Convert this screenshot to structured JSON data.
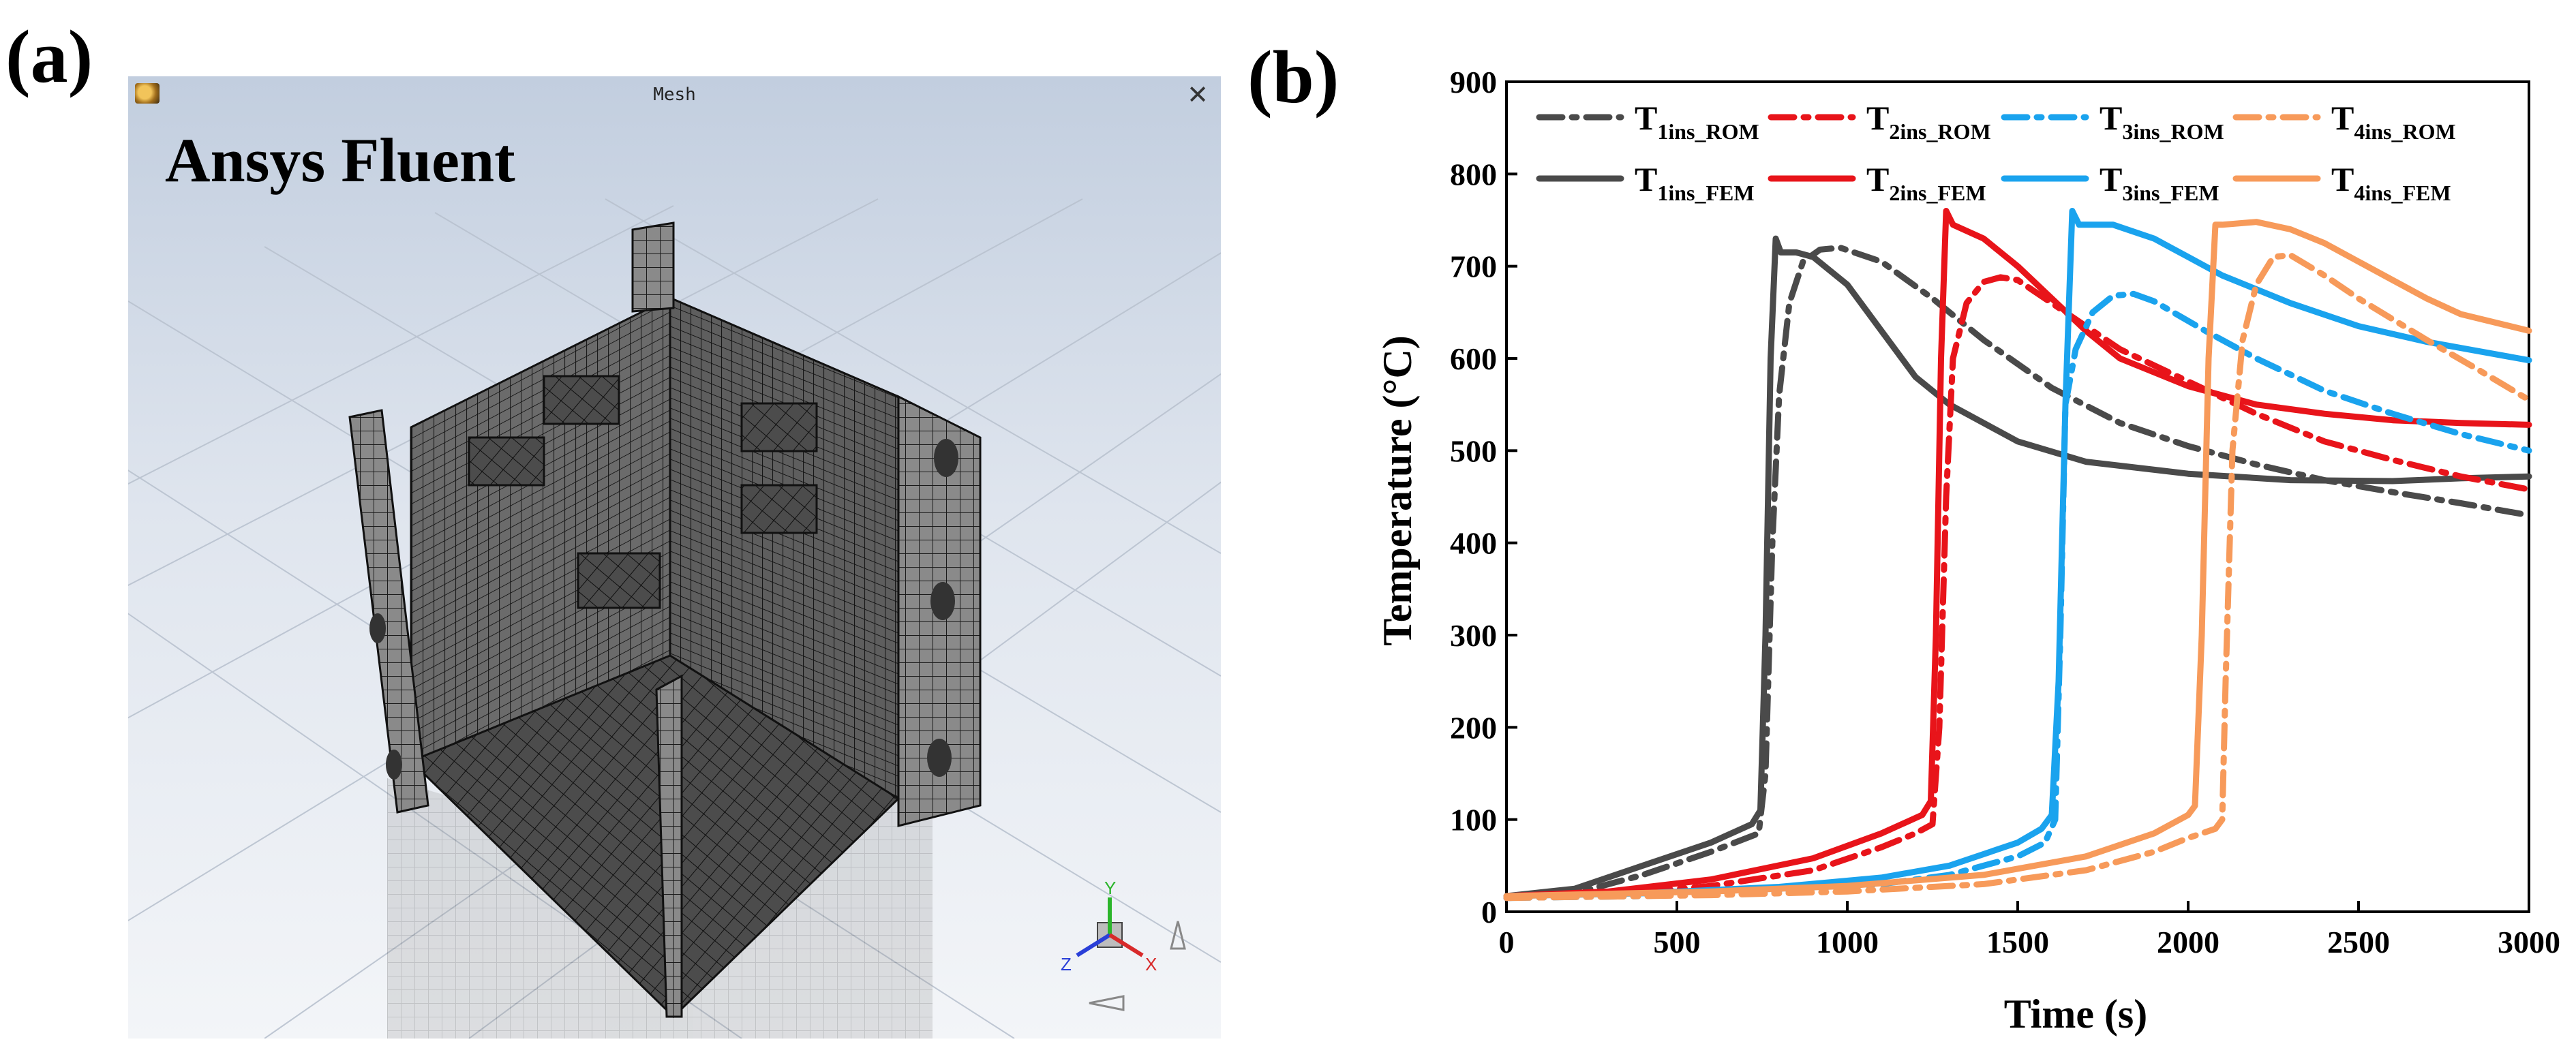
{
  "panels": {
    "a_label": "(a)",
    "b_label": "(b)"
  },
  "fluent": {
    "window_title": "Mesh",
    "brand": "Ansys Fluent",
    "close_glyph": "✕",
    "app_icon": "fluent-app-icon",
    "axis_triad": {
      "x": "X",
      "y": "Y",
      "z": "Z"
    }
  },
  "chart_data": {
    "type": "line",
    "xlabel": "Time (s)",
    "ylabel": "Temperature (°C)",
    "xlim": [
      0,
      3000
    ],
    "ylim": [
      0,
      900
    ],
    "xticks": [
      0,
      500,
      1000,
      1500,
      2000,
      2500,
      3000
    ],
    "yticks": [
      0,
      100,
      200,
      300,
      400,
      500,
      600,
      700,
      800,
      900
    ],
    "legend": {
      "placement": "top",
      "columns": 4
    },
    "series": [
      {
        "name": "T1ins_ROM",
        "base": "T",
        "sub": "1ins_ROM",
        "color": "#4a4a4a",
        "style": "dashdot",
        "points": [
          [
            0,
            15
          ],
          [
            200,
            20
          ],
          [
            400,
            40
          ],
          [
            600,
            65
          ],
          [
            740,
            85
          ],
          [
            760,
            150
          ],
          [
            780,
            400
          ],
          [
            800,
            560
          ],
          [
            830,
            660
          ],
          [
            870,
            705
          ],
          [
            920,
            718
          ],
          [
            980,
            720
          ],
          [
            1100,
            705
          ],
          [
            1250,
            665
          ],
          [
            1400,
            620
          ],
          [
            1600,
            568
          ],
          [
            1800,
            530
          ],
          [
            2000,
            505
          ],
          [
            2200,
            485
          ],
          [
            2400,
            468
          ],
          [
            2600,
            455
          ],
          [
            2800,
            443
          ],
          [
            3000,
            430
          ]
        ]
      },
      {
        "name": "T1ins_FEM",
        "base": "T",
        "sub": "1ins_FEM",
        "color": "#4a4a4a",
        "style": "solid",
        "points": [
          [
            0,
            17
          ],
          [
            200,
            25
          ],
          [
            400,
            50
          ],
          [
            600,
            75
          ],
          [
            720,
            95
          ],
          [
            745,
            110
          ],
          [
            760,
            300
          ],
          [
            775,
            600
          ],
          [
            790,
            730
          ],
          [
            805,
            715
          ],
          [
            850,
            715
          ],
          [
            900,
            710
          ],
          [
            1000,
            680
          ],
          [
            1100,
            630
          ],
          [
            1200,
            580
          ],
          [
            1300,
            550
          ],
          [
            1500,
            510
          ],
          [
            1700,
            488
          ],
          [
            2000,
            475
          ],
          [
            2300,
            468
          ],
          [
            2600,
            467
          ],
          [
            2800,
            470
          ],
          [
            3000,
            472
          ]
        ]
      },
      {
        "name": "T2ins_ROM",
        "base": "T",
        "sub": "2ins_ROM",
        "color": "#e8141a",
        "style": "dashdot",
        "points": [
          [
            0,
            15
          ],
          [
            300,
            18
          ],
          [
            600,
            28
          ],
          [
            900,
            45
          ],
          [
            1100,
            70
          ],
          [
            1200,
            85
          ],
          [
            1250,
            95
          ],
          [
            1270,
            200
          ],
          [
            1290,
            450
          ],
          [
            1310,
            600
          ],
          [
            1350,
            660
          ],
          [
            1400,
            683
          ],
          [
            1450,
            688
          ],
          [
            1500,
            685
          ],
          [
            1600,
            660
          ],
          [
            1800,
            610
          ],
          [
            2000,
            575
          ],
          [
            2200,
            540
          ],
          [
            2400,
            510
          ],
          [
            2600,
            490
          ],
          [
            2800,
            472
          ],
          [
            3000,
            458
          ]
        ]
      },
      {
        "name": "T2ins_FEM",
        "base": "T",
        "sub": "2ins_FEM",
        "color": "#e8141a",
        "style": "solid",
        "points": [
          [
            0,
            17
          ],
          [
            300,
            22
          ],
          [
            600,
            35
          ],
          [
            900,
            58
          ],
          [
            1100,
            85
          ],
          [
            1220,
            105
          ],
          [
            1245,
            120
          ],
          [
            1260,
            300
          ],
          [
            1275,
            600
          ],
          [
            1290,
            760
          ],
          [
            1310,
            745
          ],
          [
            1400,
            730
          ],
          [
            1500,
            700
          ],
          [
            1600,
            665
          ],
          [
            1700,
            630
          ],
          [
            1800,
            600
          ],
          [
            2000,
            570
          ],
          [
            2200,
            550
          ],
          [
            2400,
            540
          ],
          [
            2600,
            533
          ],
          [
            2800,
            530
          ],
          [
            3000,
            528
          ]
        ]
      },
      {
        "name": "T3ins_ROM",
        "base": "T",
        "sub": "3ins_ROM",
        "color": "#1aa3ee",
        "style": "dashdot",
        "points": [
          [
            0,
            15
          ],
          [
            400,
            17
          ],
          [
            800,
            22
          ],
          [
            1100,
            30
          ],
          [
            1300,
            40
          ],
          [
            1500,
            60
          ],
          [
            1580,
            75
          ],
          [
            1610,
            100
          ],
          [
            1625,
            300
          ],
          [
            1640,
            550
          ],
          [
            1670,
            610
          ],
          [
            1720,
            650
          ],
          [
            1780,
            668
          ],
          [
            1840,
            670
          ],
          [
            1900,
            662
          ],
          [
            2050,
            630
          ],
          [
            2200,
            600
          ],
          [
            2400,
            565
          ],
          [
            2600,
            540
          ],
          [
            2800,
            518
          ],
          [
            3000,
            500
          ]
        ]
      },
      {
        "name": "T3ins_FEM",
        "base": "T",
        "sub": "3ins_FEM",
        "color": "#1aa3ee",
        "style": "solid",
        "points": [
          [
            0,
            17
          ],
          [
            400,
            20
          ],
          [
            800,
            27
          ],
          [
            1100,
            37
          ],
          [
            1300,
            50
          ],
          [
            1500,
            75
          ],
          [
            1570,
            90
          ],
          [
            1600,
            105
          ],
          [
            1620,
            250
          ],
          [
            1640,
            550
          ],
          [
            1660,
            760
          ],
          [
            1680,
            745
          ],
          [
            1780,
            745
          ],
          [
            1900,
            730
          ],
          [
            2000,
            710
          ],
          [
            2100,
            690
          ],
          [
            2300,
            660
          ],
          [
            2500,
            635
          ],
          [
            2700,
            618
          ],
          [
            3000,
            598
          ]
        ]
      },
      {
        "name": "T4ins_ROM",
        "base": "T",
        "sub": "4ins_ROM",
        "color": "#f79a5a",
        "style": "dashdot",
        "points": [
          [
            0,
            15
          ],
          [
            600,
            18
          ],
          [
            1000,
            22
          ],
          [
            1400,
            30
          ],
          [
            1700,
            45
          ],
          [
            1900,
            65
          ],
          [
            2000,
            80
          ],
          [
            2080,
            90
          ],
          [
            2100,
            100
          ],
          [
            2110,
            250
          ],
          [
            2130,
            500
          ],
          [
            2160,
            620
          ],
          [
            2200,
            680
          ],
          [
            2250,
            710
          ],
          [
            2300,
            712
          ],
          [
            2400,
            690
          ],
          [
            2500,
            665
          ],
          [
            2700,
            620
          ],
          [
            2850,
            588
          ],
          [
            3000,
            555
          ]
        ]
      },
      {
        "name": "T4ins_FEM",
        "base": "T",
        "sub": "4ins_FEM",
        "color": "#f79a5a",
        "style": "solid",
        "points": [
          [
            0,
            17
          ],
          [
            600,
            22
          ],
          [
            1000,
            28
          ],
          [
            1400,
            40
          ],
          [
            1700,
            60
          ],
          [
            1900,
            85
          ],
          [
            2000,
            105
          ],
          [
            2020,
            115
          ],
          [
            2040,
            300
          ],
          [
            2060,
            600
          ],
          [
            2080,
            745
          ],
          [
            2100,
            745
          ],
          [
            2200,
            748
          ],
          [
            2300,
            740
          ],
          [
            2400,
            725
          ],
          [
            2500,
            705
          ],
          [
            2600,
            685
          ],
          [
            2700,
            665
          ],
          [
            2800,
            648
          ],
          [
            3000,
            630
          ]
        ]
      }
    ]
  }
}
